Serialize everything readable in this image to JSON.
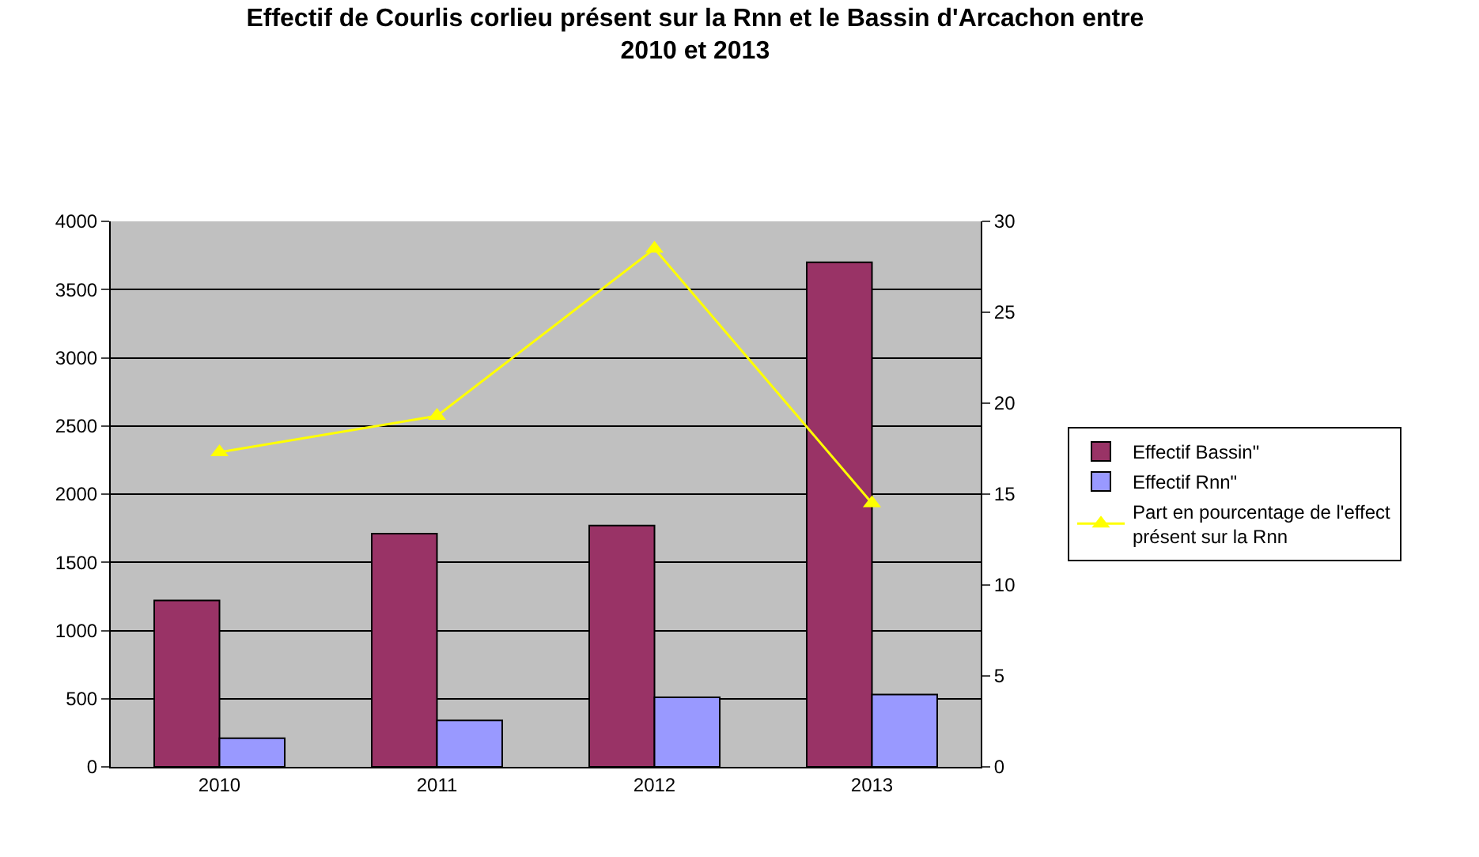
{
  "chart_data": {
    "type": "bar",
    "title": "Effectif de Courlis corlieu présent sur la Rnn et le Bassin d'Arcachon entre 2010 et 2013",
    "categories": [
      "2010",
      "2011",
      "2012",
      "2013"
    ],
    "series": [
      {
        "name": "Effectif Bassin\"",
        "color": "#993366",
        "values": [
          1220,
          1710,
          1770,
          3700
        ]
      },
      {
        "name": "Effectif Rnn\"",
        "color": "#9999ff",
        "values": [
          210,
          340,
          510,
          530
        ]
      },
      {
        "name": "Part en pourcentage de l'effect présent sur la Rnn",
        "type": "line",
        "axis": "y2",
        "color": "#ffff00",
        "marker": "triangle",
        "line_style": "solid",
        "values": [
          17.3,
          19.3,
          28.5,
          14.5
        ]
      }
    ],
    "ylim": [
      0,
      4000
    ],
    "yticks": [
      0,
      500,
      1000,
      1500,
      2000,
      2500,
      3000,
      3500,
      4000
    ],
    "y2lim": [
      0,
      30
    ],
    "y2ticks": [
      0,
      5,
      10,
      15,
      20,
      25,
      30
    ],
    "grid": "y",
    "legend": "right"
  }
}
